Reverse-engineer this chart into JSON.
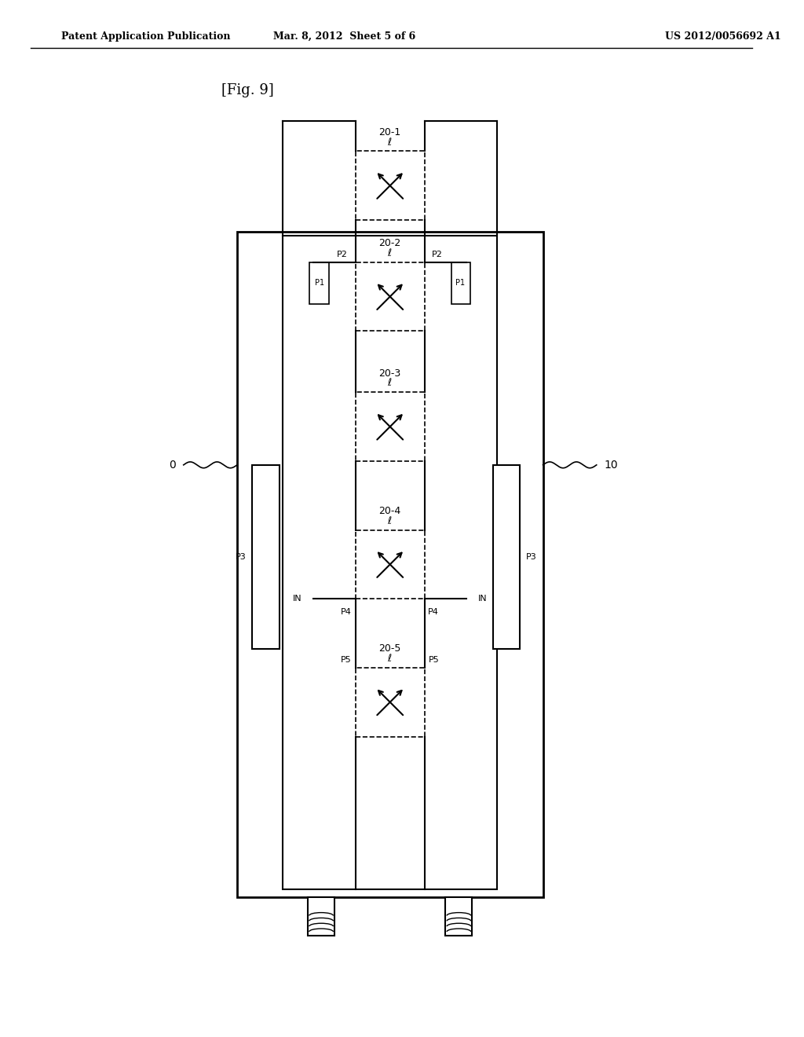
{
  "title": "[Fig. 9]",
  "header_left": "Patent Application Publication",
  "header_mid": "Mar. 8, 2012  Sheet 5 of 6",
  "header_right": "US 2012/0056692 A1",
  "background_color": "#ffffff",
  "line_color": "#000000",
  "fig_width": 10.24,
  "fig_height": 13.2,
  "label_0": "0",
  "label_10": "10",
  "label_IN_left": "IN",
  "label_IN_right": "IN",
  "phase_shifters": [
    "20-1",
    "20-2",
    "20-3",
    "20-4",
    "20-5"
  ],
  "port_labels": [
    "P1",
    "P2",
    "P3",
    "P4",
    "P5"
  ]
}
